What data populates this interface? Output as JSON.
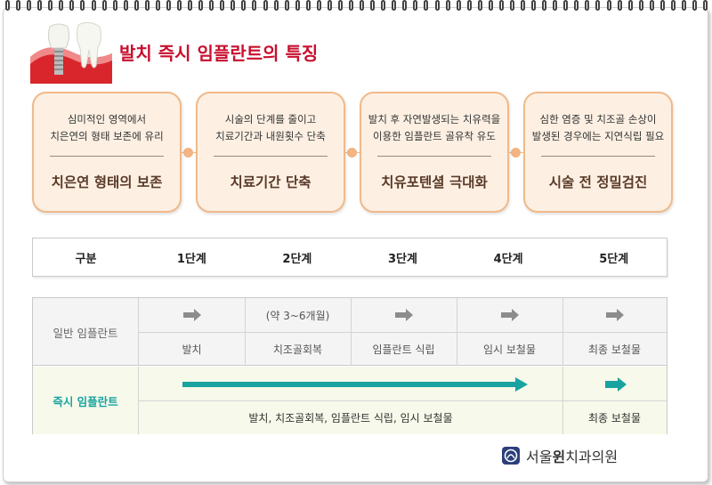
{
  "title": "발치 즉시 임플란트의 특징",
  "cards": [
    {
      "desc1": "심미적인 영역에서",
      "desc2": "치은연의 형태 보존에 유리",
      "head": "치은연 형태의 보존"
    },
    {
      "desc1": "시술의 단계를 줄이고",
      "desc2": "치료기간과 내원횟수 단축",
      "head": "치료기간 단축"
    },
    {
      "desc1": "발치 후 자연발생되는 치유력을",
      "desc2": "이용한 임플란트 골유착 유도",
      "head": "치유포텐셜 극대화"
    },
    {
      "desc1": "심한 염증 및 치조골 손상이",
      "desc2": "발생된 경우에는 지연식립 필요",
      "head": "시술 전 정밀검진"
    }
  ],
  "steps": [
    "구분",
    "1단계",
    "2단계",
    "3단계",
    "4단계",
    "5단계"
  ],
  "general": {
    "label": "일반 임플란트",
    "period": "(약 3~6개월)",
    "items": [
      "발치",
      "치조골회복",
      "임플란트 식립",
      "임시 보철물",
      "최종 보철물"
    ]
  },
  "immediate": {
    "label": "즉시 임플란트",
    "combined": "발치, 치조골회복, 임플란트 식립, 임시 보철물",
    "final": "최종 보철물"
  },
  "logo": {
    "part1": "서울",
    "part2": "윈",
    "part3": "치과의원"
  },
  "colors": {
    "title": "#c8102e",
    "accent": "#19a3a0",
    "card_border": "#f0b98a",
    "card_bg": "#fdf0e3"
  }
}
